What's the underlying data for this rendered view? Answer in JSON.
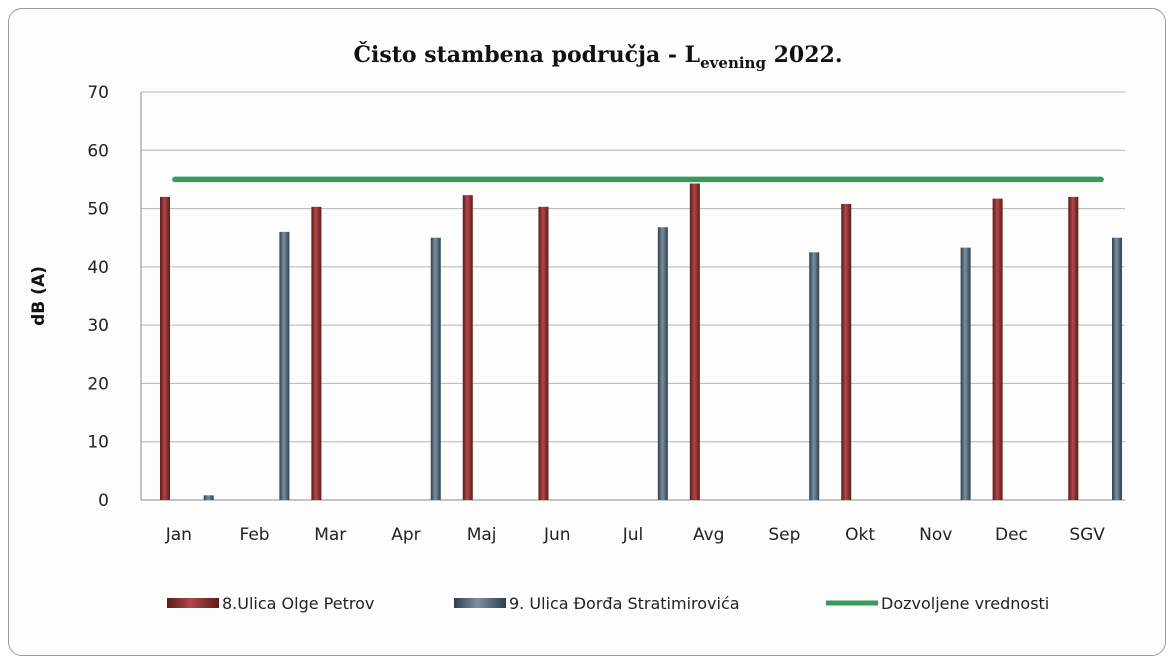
{
  "chart_data": {
    "type": "bar",
    "title": {
      "main": "Čisto stambena područja - L",
      "subscript": "evening",
      "suffix": " 2022."
    },
    "ylabel": "dB (A)",
    "xlabel": "",
    "ylim": [
      0,
      70
    ],
    "yticks": [
      0,
      10,
      20,
      30,
      40,
      50,
      60,
      70
    ],
    "grid": true,
    "legend_position": "bottom",
    "categories": [
      "Jan",
      "Feb",
      "Mar",
      "Apr",
      "Maj",
      "Jun",
      "Jul",
      "Avg",
      "Sep",
      "Okt",
      "Nov",
      "Dec",
      "SGV"
    ],
    "series": [
      {
        "name": "8.Ulica Olge Petrov",
        "kind": "bar",
        "color": "#8b2e2e",
        "values": [
          52,
          null,
          50.3,
          null,
          52.3,
          50.3,
          null,
          54.3,
          null,
          50.8,
          null,
          51.7,
          52
        ]
      },
      {
        "name": "9. Ulica Đorđa Stratimirovića",
        "kind": "bar",
        "color": "#4f6272",
        "values": [
          0.8,
          46,
          null,
          45,
          null,
          null,
          46.8,
          null,
          42.5,
          null,
          43.3,
          null,
          45
        ]
      },
      {
        "name": "Dozvoljene vrednosti",
        "kind": "line",
        "color": "#3a9a5a",
        "values": [
          55,
          55,
          55,
          55,
          55,
          55,
          55,
          55,
          55,
          55,
          55,
          55,
          55
        ]
      }
    ]
  }
}
